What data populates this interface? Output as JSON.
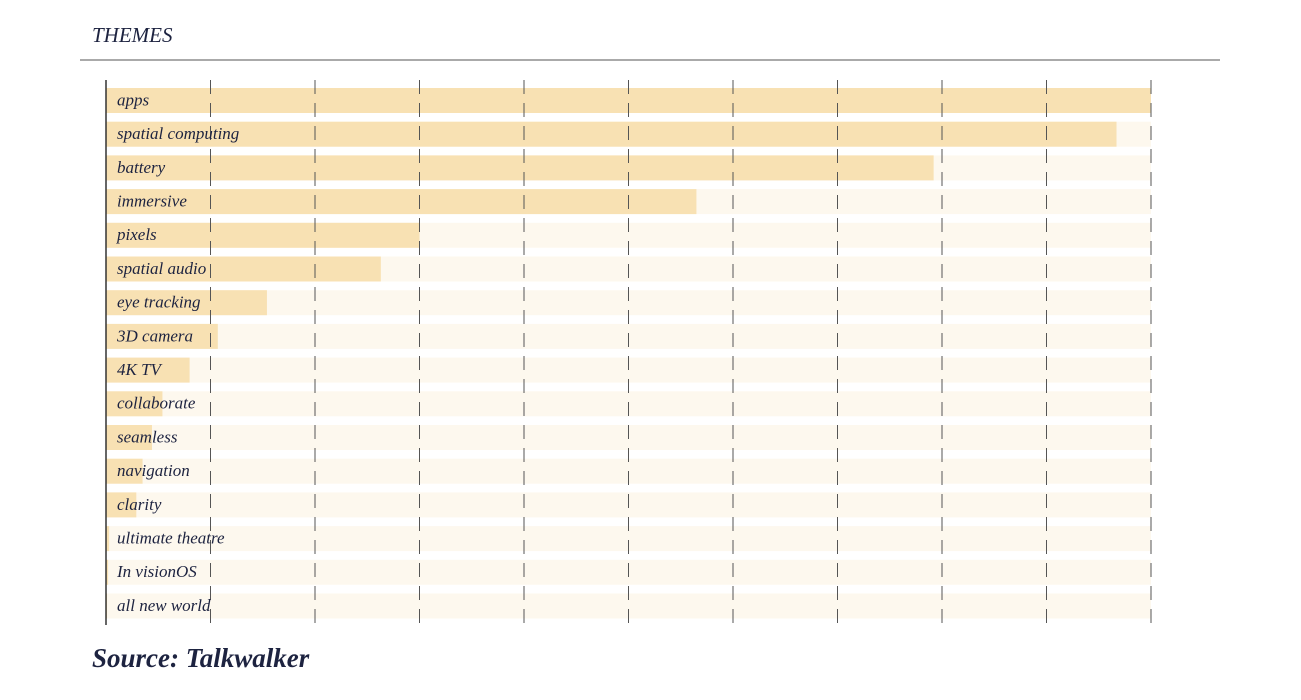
{
  "chart_data": {
    "type": "bar",
    "orientation": "horizontal",
    "title": "THEMES",
    "source": "Source: Talkwalker",
    "categories": [
      "apps",
      "spatial computing",
      "battery",
      "immersive",
      "pixels",
      "spatial audio",
      "eye tracking",
      "3D camera",
      "4K TV",
      "collaborate",
      "seamless",
      "navigation",
      "clarity",
      "ultimate theatre",
      "In visionOS",
      "all new world"
    ],
    "values": [
      100,
      96.7,
      79.2,
      56.5,
      30,
      26.3,
      15.4,
      10.7,
      8,
      5.4,
      4.4,
      3.5,
      2.9,
      0.3,
      0.2,
      0.1
    ],
    "color": "#f8e1b3",
    "track_color": "#fdf8ee",
    "xlim": [
      0,
      100
    ],
    "xticks": [
      0,
      10,
      20,
      30,
      40,
      50,
      60,
      70,
      80,
      90,
      100
    ],
    "grid": true
  }
}
